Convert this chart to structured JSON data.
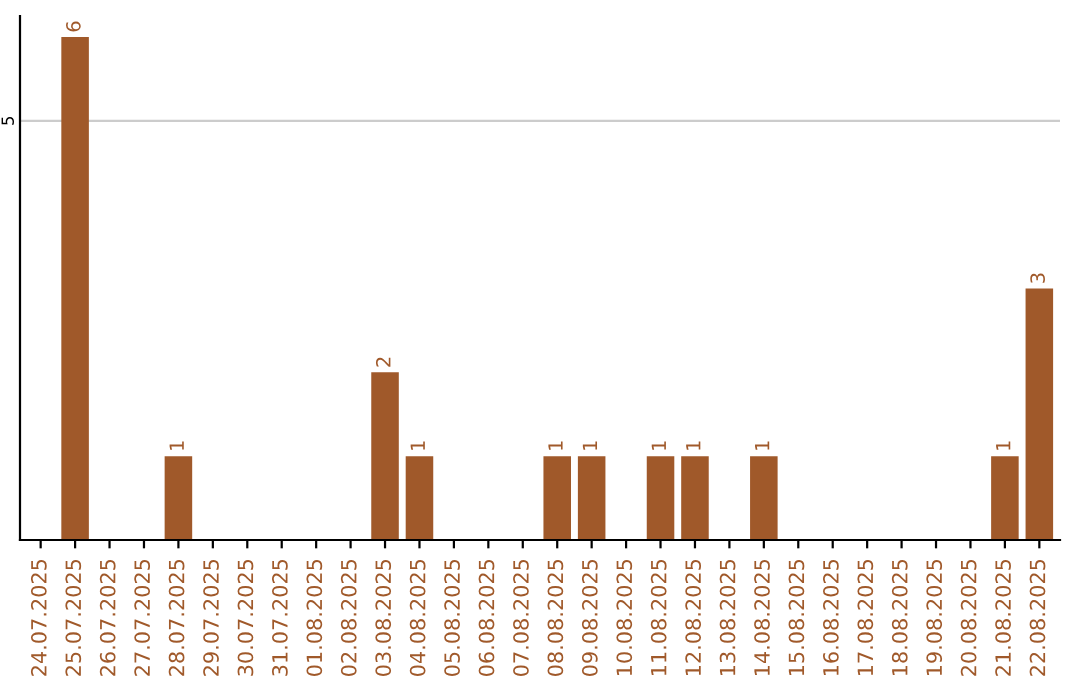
{
  "chart_data": {
    "type": "bar",
    "categories": [
      "24.07.2025",
      "25.07.2025",
      "26.07.2025",
      "27.07.2025",
      "28.07.2025",
      "29.07.2025",
      "30.07.2025",
      "31.07.2025",
      "01.08.2025",
      "02.08.2025",
      "03.08.2025",
      "04.08.2025",
      "05.08.2025",
      "06.08.2025",
      "07.08.2025",
      "08.08.2025",
      "09.08.2025",
      "10.08.2025",
      "11.08.2025",
      "12.08.2025",
      "13.08.2025",
      "14.08.2025",
      "15.08.2025",
      "16.08.2025",
      "17.08.2025",
      "18.08.2025",
      "19.08.2025",
      "20.08.2025",
      "21.08.2025",
      "22.08.2025"
    ],
    "values": [
      0,
      6,
      0,
      0,
      1,
      0,
      0,
      0,
      0,
      0,
      2,
      1,
      0,
      0,
      0,
      1,
      1,
      0,
      1,
      1,
      0,
      1,
      0,
      0,
      0,
      0,
      0,
      0,
      1,
      3
    ],
    "value_labels": [
      null,
      "6",
      null,
      null,
      "1",
      null,
      null,
      null,
      null,
      null,
      "2",
      "1",
      null,
      null,
      null,
      "1",
      "1",
      null,
      "1",
      "1",
      null,
      "1",
      null,
      null,
      null,
      null,
      null,
      null,
      "1",
      "3"
    ],
    "color": "#a0592a",
    "ylim": [
      0,
      6.25
    ],
    "yticks": [
      5
    ],
    "grid": "y"
  }
}
